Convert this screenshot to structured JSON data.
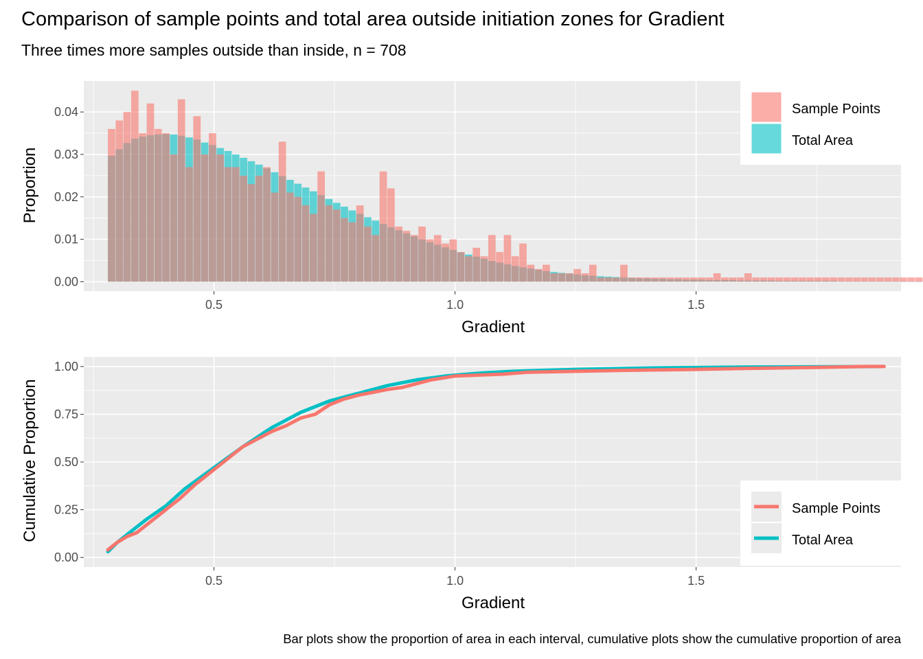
{
  "title": "Comparison of sample points and total area outside initiation zones for Gradient",
  "subtitle": "Three times more samples outside than inside, n = 708",
  "caption": "Bar plots show the proportion of area in each interval, cumulative plots show the cumulative proportion of area",
  "colors": {
    "sample": "#F8766D",
    "total": "#00BFC4",
    "panel": "#EBEBEB",
    "grid": "#FFFFFF"
  },
  "chart_data": [
    {
      "type": "bar",
      "xlabel": "Gradient",
      "ylabel": "Proportion",
      "xlim": [
        0.23,
        1.925
      ],
      "ylim": [
        -0.0022,
        0.0473
      ],
      "x_ticks": [
        "0.5",
        "1.0",
        "1.5"
      ],
      "x_tick_values": [
        0.5,
        1.0,
        1.5
      ],
      "y_ticks": [
        "0.00",
        "0.01",
        "0.02",
        "0.03",
        "0.04"
      ],
      "y_tick_values": [
        0,
        0.01,
        0.02,
        0.03,
        0.04
      ],
      "legend": [
        "Sample Points",
        "Total Area"
      ],
      "legend_position": "top-right",
      "grid": true,
      "bin_start": 0.28,
      "bin_width": 0.0161,
      "series": [
        {
          "name": "Sample Points",
          "values": [
            0.036,
            0.038,
            0.04,
            0.045,
            0.035,
            0.042,
            0.036,
            0.035,
            0.03,
            0.043,
            0.027,
            0.039,
            0.03,
            0.035,
            0.03,
            0.027,
            0.027,
            0.025,
            0.023,
            0.025,
            0.027,
            0.021,
            0.033,
            0.021,
            0.02,
            0.018,
            0.016,
            0.026,
            0.018,
            0.017,
            0.015,
            0.014,
            0.018,
            0.013,
            0.011,
            0.026,
            0.022,
            0.013,
            0.012,
            0.011,
            0.013,
            0.01,
            0.011,
            0.009,
            0.01,
            0.007,
            0.006,
            0.008,
            0.006,
            0.011,
            0.007,
            0.011,
            0.006,
            0.009,
            0.004,
            0.003,
            0.004,
            0.002,
            0.002,
            0.002,
            0.003,
            0.002,
            0.004,
            0.001,
            0.001,
            0.001,
            0.004,
            0.001,
            0.001,
            0.001,
            0.001,
            0.001,
            0.001,
            0.001,
            0.001,
            0.001,
            0.001,
            0.001,
            0.002,
            0.001,
            0.001,
            0.001,
            0.002,
            0.001,
            0.001,
            0.001,
            0.001,
            0.001,
            0.001,
            0.001,
            0.001,
            0.001,
            0.001,
            0.001,
            0.001,
            0.001,
            0.001,
            0.001,
            0.001,
            0.001,
            0.001,
            0.001,
            0.001,
            0.001,
            0.001,
            0.001,
            0.001,
            0.001,
            0.001,
            0.001,
            0.001,
            0.001,
            0.001,
            0.001,
            0.001,
            0.001,
            0.001,
            0.001,
            0.001,
            0.001,
            0.001,
            0.001,
            0.001,
            0.001,
            0.001,
            0.001,
            0.001,
            0.001,
            0.001,
            0.001,
            0.001
          ]
        },
        {
          "name": "Total Area",
          "values": [
            0.0297,
            0.0312,
            0.0327,
            0.0337,
            0.0342,
            0.0345,
            0.0347,
            0.0348,
            0.0347,
            0.0344,
            0.034,
            0.0335,
            0.0328,
            0.0322,
            0.0315,
            0.0308,
            0.03,
            0.0292,
            0.0284,
            0.0276,
            0.0267,
            0.0258,
            0.0249,
            0.024,
            0.0231,
            0.0222,
            0.0213,
            0.0204,
            0.0195,
            0.0186,
            0.0177,
            0.0168,
            0.016,
            0.0152,
            0.0144,
            0.0136,
            0.0128,
            0.0121,
            0.0114,
            0.0107,
            0.01,
            0.0093,
            0.0087,
            0.0081,
            0.0075,
            0.0069,
            0.0064,
            0.0059,
            0.0054,
            0.0049,
            0.0045,
            0.0041,
            0.0037,
            0.0034,
            0.0031,
            0.0028,
            0.0025,
            0.0023,
            0.0021,
            0.0019,
            0.0017,
            0.0015,
            0.0014,
            0.0013,
            0.0012,
            0.0011,
            0.001,
            0.0009,
            0.0008,
            0.0008,
            0.0007,
            0.0007,
            0.0006,
            0.0006,
            0.0005,
            0.0005,
            0.0005,
            0.0004,
            0.0004,
            0.0004,
            0.0004,
            0.0003,
            0.0003,
            0.0003,
            0.0003,
            0.0003,
            0.0002,
            0.0002,
            0.0002,
            0.0002,
            0.0002,
            0.0002,
            0.0002,
            0.0002,
            0.0001,
            0.0001,
            0.0001,
            0.0001,
            0.0001,
            0.0001,
            0.0001,
            0.0001,
            0.0001,
            0.0001,
            0.0001,
            0.0001,
            0.0001,
            0.0001,
            0.0001,
            0.0001,
            0.0001,
            0.0001,
            0.0001,
            0.0001,
            0.0001,
            0.0001,
            0.0001,
            0.0001,
            0.0001,
            0.0001,
            0.0001,
            0.0001,
            0.0001,
            0.0001,
            0.0001,
            0.0001,
            0.0001,
            0.0001,
            0.0001,
            0.0001,
            0.0001
          ]
        }
      ]
    },
    {
      "type": "line",
      "xlabel": "Gradient",
      "ylabel": "Cumulative Proportion",
      "xlim": [
        0.23,
        1.925
      ],
      "ylim": [
        -0.05,
        1.05
      ],
      "x_ticks": [
        "0.5",
        "1.0",
        "1.5"
      ],
      "x_tick_values": [
        0.5,
        1.0,
        1.5
      ],
      "y_ticks": [
        "0.00",
        "0.25",
        "0.50",
        "0.75",
        "1.00"
      ],
      "y_tick_values": [
        0,
        0.25,
        0.5,
        0.75,
        1.0
      ],
      "legend": [
        "Sample Points",
        "Total Area"
      ],
      "legend_position": "bottom-right",
      "grid": true,
      "series": [
        {
          "name": "Total Area",
          "x": [
            0.28,
            0.3,
            0.33,
            0.36,
            0.4,
            0.44,
            0.5,
            0.56,
            0.62,
            0.68,
            0.74,
            0.8,
            0.86,
            0.92,
            0.98,
            1.05,
            1.12,
            1.25,
            1.4,
            1.6,
            1.88
          ],
          "y": [
            0.03,
            0.08,
            0.14,
            0.2,
            0.27,
            0.36,
            0.47,
            0.58,
            0.68,
            0.76,
            0.82,
            0.86,
            0.9,
            0.93,
            0.95,
            0.965,
            0.975,
            0.985,
            0.992,
            0.997,
            1.0
          ]
        },
        {
          "name": "Sample Points",
          "x": [
            0.28,
            0.3,
            0.32,
            0.34,
            0.36,
            0.38,
            0.4,
            0.43,
            0.46,
            0.5,
            0.53,
            0.56,
            0.59,
            0.62,
            0.65,
            0.68,
            0.71,
            0.74,
            0.77,
            0.8,
            0.83,
            0.86,
            0.89,
            0.92,
            0.95,
            1.0,
            1.05,
            1.1,
            1.15,
            1.25,
            1.35,
            1.5,
            1.6,
            1.75,
            1.85,
            1.89
          ],
          "y": [
            0.04,
            0.08,
            0.11,
            0.13,
            0.17,
            0.21,
            0.25,
            0.31,
            0.38,
            0.46,
            0.52,
            0.58,
            0.62,
            0.66,
            0.69,
            0.73,
            0.75,
            0.8,
            0.83,
            0.85,
            0.865,
            0.88,
            0.89,
            0.91,
            0.93,
            0.95,
            0.955,
            0.96,
            0.97,
            0.975,
            0.98,
            0.985,
            0.99,
            0.995,
            1.0,
            1.0
          ]
        }
      ]
    }
  ]
}
